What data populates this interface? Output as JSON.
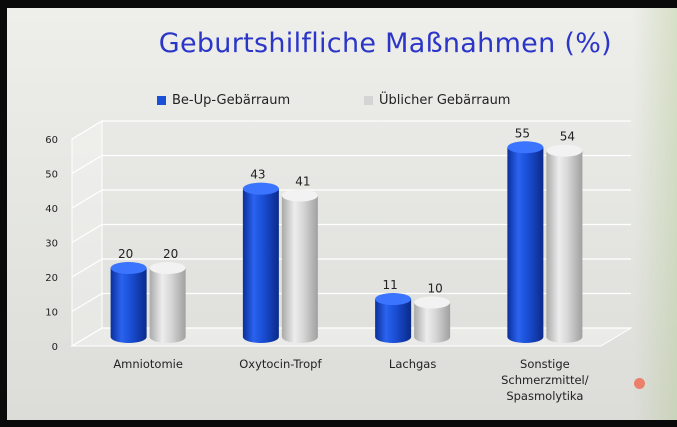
{
  "chart_data": {
    "type": "bar",
    "title": "Geburtshilfliche Maßnahmen (%)",
    "categories": [
      "Amniotomie",
      "Oxytocin-Tropf",
      "Lachgas",
      "Sonstige\nSchmerzmittel/\nSpasmolytika"
    ],
    "series": [
      {
        "name": "Be-Up-Gebärraum",
        "values": [
          20,
          43,
          11,
          55
        ],
        "color": "#1a4fd6"
      },
      {
        "name": "Üblicher Gebärraum",
        "values": [
          20,
          41,
          10,
          54
        ],
        "color": "#d2d2d2"
      }
    ],
    "y_ticks": [
      0,
      10,
      20,
      30,
      40,
      50,
      60
    ],
    "ylim": [
      0,
      60
    ],
    "grid": true,
    "legend_position": "top-left",
    "style": "3d-cylinder"
  },
  "decorations": {
    "dot_color": "#f07c6a"
  }
}
